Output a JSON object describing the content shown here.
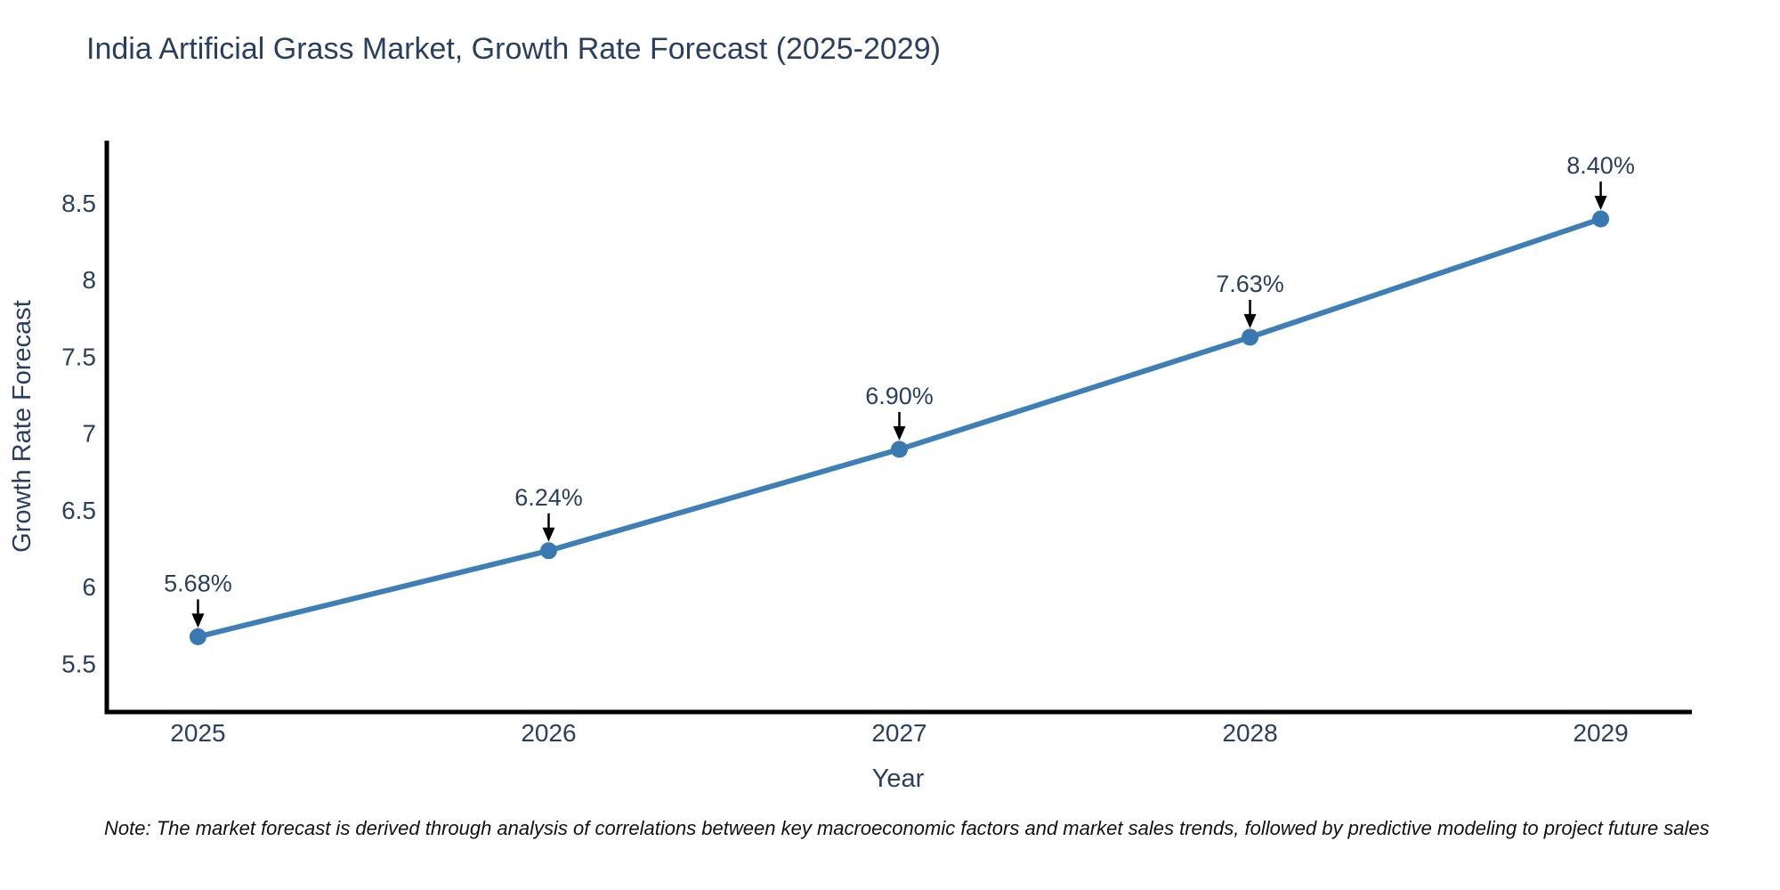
{
  "title": "India Artificial Grass Market, Growth Rate Forecast (2025-2029)",
  "note": "Note: The market forecast is derived through analysis of correlations between key macroeconomic factors and market sales trends, followed by predictive modeling to project future sales",
  "colors": {
    "background": "#ffffff",
    "title_text": "#2a3f5f",
    "tick_text": "#2a3f5f",
    "axis_line": "#000000",
    "series_line": "#3f7fb8",
    "marker_fill": "#3a78b2",
    "annotation_text": "#2a3f5f",
    "annotation_arrow": "#000000",
    "note_text": "#111111"
  },
  "chart_data": {
    "type": "line",
    "title": "India Artificial Grass Market, Growth Rate Forecast (2025-2029)",
    "xlabel": "Year",
    "ylabel": "Growth Rate Forecast",
    "x": [
      2025,
      2026,
      2027,
      2028,
      2029
    ],
    "y": [
      5.68,
      6.24,
      6.9,
      7.63,
      8.4
    ],
    "point_labels": [
      "5.68%",
      "6.24%",
      "6.90%",
      "7.63%",
      "8.40%"
    ],
    "xtick_values": [
      2025,
      2026,
      2027,
      2028,
      2029
    ],
    "xtick_labels": [
      "2025",
      "2026",
      "2027",
      "2028",
      "2029"
    ],
    "ytick_values": [
      5.5,
      6,
      6.5,
      7,
      7.5,
      8,
      8.5
    ],
    "ytick_labels": [
      "5.5",
      "6",
      "6.5",
      "7",
      "7.5",
      "8",
      "8.5"
    ],
    "xlim": [
      2024.74,
      2029.26
    ],
    "ylim": [
      5.19,
      8.91
    ],
    "grid": false,
    "legend": false,
    "marker": "circle",
    "annotations": "percentage value labels with downward black arrows above each data point"
  }
}
